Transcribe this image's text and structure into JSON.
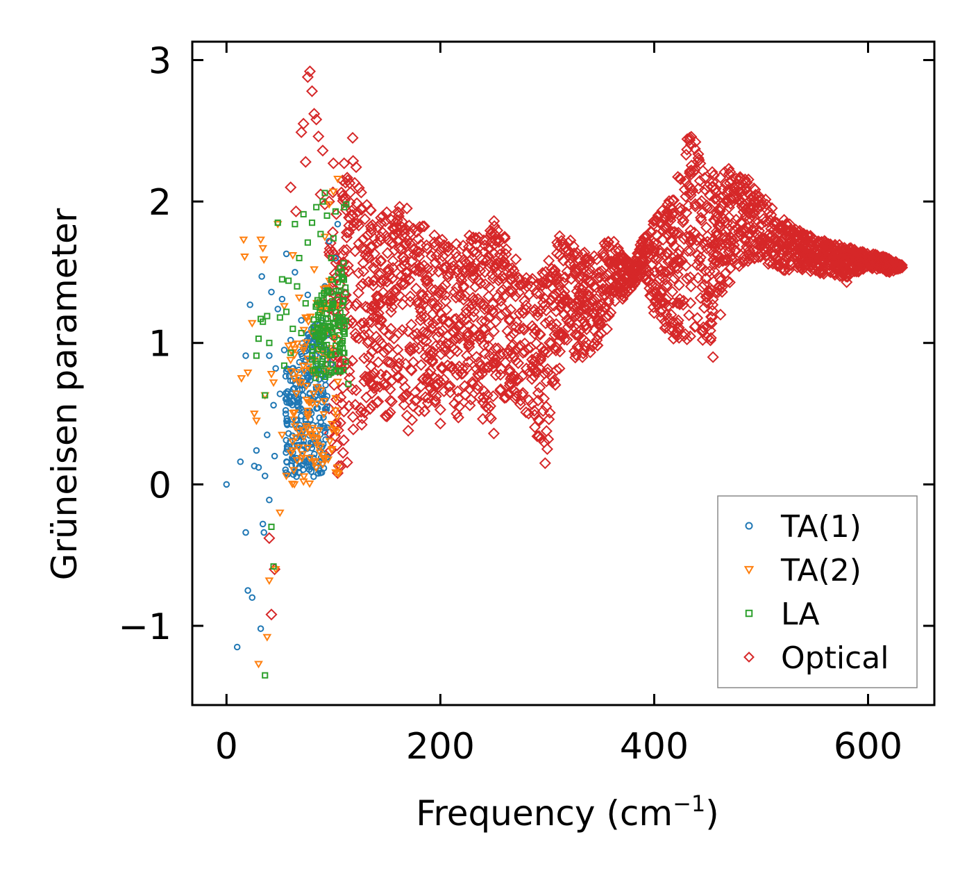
{
  "chart_data": {
    "type": "scatter",
    "title": "",
    "xlabel": "Frequency (cm",
    "xlabel_sup": "−1",
    "xlabel_end": ")",
    "ylabel": "Grüneisen parameter",
    "xlim": [
      -32,
      662
    ],
    "ylim": [
      -1.56,
      3.13
    ],
    "xticks": [
      0,
      200,
      400,
      600
    ],
    "xtick_labels": [
      "0",
      "200",
      "400",
      "600"
    ],
    "yticks": [
      -1,
      0,
      1,
      2,
      3
    ],
    "ytick_labels": [
      "−1",
      "0",
      "1",
      "2",
      "3"
    ],
    "grid": false,
    "legend_position": "lower-right",
    "series": [
      {
        "name": "TA(1)",
        "marker": "circle",
        "color": "#1f77b4",
        "points": [
          [
            0,
            0
          ],
          [
            10,
            -1.15
          ],
          [
            13,
            0.16
          ],
          [
            18,
            -0.34
          ],
          [
            18,
            0.91
          ],
          [
            20,
            -0.75
          ],
          [
            22,
            1.27
          ],
          [
            24,
            -0.8
          ],
          [
            26,
            0.13
          ],
          [
            28,
            0.24
          ],
          [
            30,
            0.12
          ],
          [
            32,
            -1.02
          ],
          [
            33,
            1.47
          ],
          [
            34,
            -0.28
          ],
          [
            35,
            -0.34
          ],
          [
            36,
            0.06
          ],
          [
            38,
            0.35
          ],
          [
            40,
            0.91
          ],
          [
            40,
            -0.11
          ],
          [
            42,
            1.36
          ],
          [
            44,
            0.56
          ],
          [
            45,
            0.2
          ],
          [
            46,
            0.82
          ],
          [
            48,
            1.24
          ],
          [
            50,
            0.64
          ],
          [
            52,
            1.31
          ],
          [
            54,
            0.95
          ],
          [
            56,
            1.63
          ],
          [
            58,
            0.36
          ],
          [
            60,
            1.02
          ],
          [
            62,
            0.78
          ],
          [
            64,
            1.5
          ],
          [
            66,
            0.45
          ],
          [
            68,
            0.58
          ],
          [
            70,
            1.16
          ],
          [
            72,
            0.28
          ],
          [
            74,
            0.88
          ],
          [
            76,
            1.34
          ],
          [
            78,
            0.52
          ],
          [
            80,
            0.95
          ],
          [
            82,
            1.12
          ],
          [
            84,
            0.67
          ],
          [
            86,
            0.3
          ],
          [
            88,
            1.02
          ],
          [
            90,
            0.22
          ],
          [
            92,
            1.4
          ],
          [
            94,
            0.55
          ],
          [
            96,
            1.72
          ],
          [
            98,
            0.85
          ],
          [
            100,
            1.28
          ],
          [
            102,
            1.6
          ],
          [
            104,
            1.84
          ]
        ],
        "dense_bands": [
          [
            55,
            95,
            0.05,
            1.3,
            260
          ]
        ]
      },
      {
        "name": "TA(2)",
        "marker": "triangle-down",
        "color": "#ff7f0e",
        "points": [
          [
            14,
            0.75
          ],
          [
            16,
            1.73
          ],
          [
            17,
            1.61
          ],
          [
            20,
            0.79
          ],
          [
            24,
            1.14
          ],
          [
            26,
            0.5
          ],
          [
            28,
            0.45
          ],
          [
            30,
            -1.27
          ],
          [
            32,
            1.73
          ],
          [
            34,
            1.67
          ],
          [
            35,
            1.59
          ],
          [
            36,
            0.63
          ],
          [
            38,
            -1.08
          ],
          [
            40,
            -0.68
          ],
          [
            42,
            0.78
          ],
          [
            44,
            0.72
          ],
          [
            46,
            -0.6
          ],
          [
            48,
            1.84
          ],
          [
            50,
            -0.2
          ],
          [
            52,
            0.35
          ],
          [
            54,
            1.26
          ],
          [
            56,
            0.06
          ],
          [
            58,
            0.98
          ],
          [
            60,
            0.88
          ],
          [
            62,
            1.62
          ],
          [
            64,
            0.41
          ],
          [
            66,
            0.17
          ],
          [
            68,
            1.32
          ],
          [
            70,
            0.72
          ],
          [
            72,
            0.02
          ],
          [
            74,
            1.18
          ],
          [
            76,
            0.26
          ],
          [
            78,
            0.58
          ],
          [
            80,
            0.81
          ],
          [
            82,
            1.52
          ],
          [
            84,
            0.33
          ],
          [
            86,
            0.95
          ],
          [
            88,
            1.23
          ],
          [
            92,
            1.75
          ],
          [
            96,
            1.98
          ],
          [
            100,
            2.07
          ],
          [
            104,
            2.16
          ]
        ],
        "dense_bands": [
          [
            60,
            105,
            0.0,
            1.6,
            110
          ]
        ]
      },
      {
        "name": "LA",
        "marker": "square",
        "color": "#2ca02c",
        "points": [
          [
            28,
            0.91
          ],
          [
            30,
            1.03
          ],
          [
            32,
            1.17
          ],
          [
            34,
            1.15
          ],
          [
            36,
            0.63
          ],
          [
            38,
            1.19
          ],
          [
            40,
            1.0
          ],
          [
            42,
            -0.3
          ],
          [
            44,
            -0.58
          ],
          [
            48,
            1.85
          ],
          [
            50,
            1.18
          ],
          [
            52,
            1.45
          ],
          [
            54,
            0.84
          ],
          [
            56,
            1.22
          ],
          [
            58,
            1.44
          ],
          [
            60,
            0.93
          ],
          [
            62,
            1.1
          ],
          [
            64,
            1.84
          ],
          [
            66,
            1.4
          ],
          [
            68,
            1.6
          ],
          [
            70,
            1.07
          ],
          [
            72,
            1.91
          ],
          [
            74,
            1.28
          ],
          [
            76,
            1.71
          ],
          [
            80,
            1.85
          ],
          [
            84,
            1.96
          ],
          [
            88,
            1.77
          ],
          [
            90,
            2.0
          ],
          [
            92,
            2.06
          ],
          [
            94,
            1.9
          ],
          [
            98,
            1.6
          ],
          [
            100,
            1.74
          ],
          [
            102,
            1.93
          ],
          [
            104,
            1.43
          ],
          [
            106,
            1.18
          ],
          [
            108,
            1.0
          ],
          [
            110,
            1.96
          ],
          [
            112,
            1.98
          ],
          [
            114,
            0.71
          ],
          [
            36,
            -1.35
          ]
        ],
        "dense_bands": [
          [
            80,
            112,
            0.75,
            1.6,
            140
          ]
        ]
      },
      {
        "name": "Optical",
        "marker": "diamond",
        "color": "#d62728",
        "points": [
          [
            40,
            -0.38
          ],
          [
            42,
            -0.92
          ],
          [
            45,
            -0.6
          ],
          [
            60,
            2.1
          ],
          [
            65,
            1.93
          ],
          [
            70,
            2.49
          ],
          [
            72,
            2.55
          ],
          [
            74,
            2.28
          ],
          [
            76,
            2.88
          ],
          [
            78,
            2.92
          ],
          [
            80,
            2.78
          ],
          [
            82,
            2.62
          ],
          [
            84,
            2.58
          ],
          [
            86,
            2.46
          ],
          [
            88,
            2.05
          ],
          [
            90,
            2.36
          ],
          [
            92,
            1.98
          ],
          [
            96,
            2.0
          ],
          [
            100,
            2.27
          ],
          [
            104,
            0.08
          ],
          [
            105,
            0.13
          ],
          [
            110,
            2.27
          ],
          [
            118,
            2.45
          ],
          [
            150,
            0.48
          ],
          [
            170,
            0.38
          ],
          [
            180,
            0.52
          ],
          [
            200,
            0.43
          ],
          [
            240,
            0.58
          ],
          [
            250,
            0.36
          ],
          [
            298,
            0.15
          ],
          [
            300,
            0.25
          ],
          [
            405,
            1.33
          ],
          [
            410,
            1.15
          ],
          [
            418,
            1.03
          ],
          [
            420,
            1.07
          ],
          [
            424,
            1.31
          ],
          [
            426,
            1.58
          ],
          [
            430,
            1.75
          ],
          [
            432,
            1.97
          ],
          [
            440,
            1.55
          ],
          [
            455,
            0.9
          ],
          [
            462,
            1.2
          ],
          [
            580,
            1.43
          ]
        ],
        "envelope": [
          [
            95,
            0.2,
            2.3
          ],
          [
            110,
            0.1,
            2.32
          ],
          [
            120,
            0.25,
            2.3
          ],
          [
            130,
            0.5,
            2.05
          ],
          [
            140,
            0.45,
            1.9
          ],
          [
            150,
            0.48,
            1.95
          ],
          [
            160,
            0.55,
            2.0
          ],
          [
            170,
            0.4,
            1.95
          ],
          [
            180,
            0.45,
            1.88
          ],
          [
            190,
            0.55,
            1.78
          ],
          [
            200,
            0.5,
            1.75
          ],
          [
            210,
            0.4,
            1.7
          ],
          [
            220,
            0.5,
            1.72
          ],
          [
            230,
            0.5,
            1.8
          ],
          [
            240,
            0.45,
            1.72
          ],
          [
            250,
            0.38,
            1.88
          ],
          [
            260,
            0.6,
            1.8
          ],
          [
            270,
            0.6,
            1.62
          ],
          [
            280,
            0.5,
            1.5
          ],
          [
            290,
            0.3,
            1.45
          ],
          [
            300,
            0.18,
            1.6
          ],
          [
            310,
            0.8,
            1.78
          ],
          [
            320,
            0.9,
            1.75
          ],
          [
            330,
            0.85,
            1.68
          ],
          [
            340,
            0.9,
            1.6
          ],
          [
            350,
            0.95,
            1.72
          ],
          [
            360,
            1.2,
            1.75
          ],
          [
            370,
            1.3,
            1.62
          ],
          [
            380,
            1.4,
            1.55
          ],
          [
            390,
            1.5,
            1.75
          ],
          [
            400,
            1.2,
            1.88
          ],
          [
            410,
            1.1,
            1.98
          ],
          [
            420,
            1.05,
            2.1
          ],
          [
            430,
            1.0,
            2.5
          ],
          [
            440,
            1.1,
            2.42
          ],
          [
            450,
            0.9,
            2.2
          ],
          [
            460,
            1.3,
            2.22
          ],
          [
            470,
            1.4,
            2.25
          ],
          [
            480,
            1.5,
            2.18
          ],
          [
            490,
            1.6,
            2.15
          ],
          [
            500,
            1.55,
            2.05
          ],
          [
            510,
            1.55,
            1.97
          ],
          [
            520,
            1.5,
            1.88
          ],
          [
            530,
            1.5,
            1.82
          ],
          [
            540,
            1.5,
            1.78
          ],
          [
            550,
            1.5,
            1.75
          ],
          [
            560,
            1.47,
            1.72
          ],
          [
            570,
            1.48,
            1.7
          ],
          [
            580,
            1.45,
            1.68
          ],
          [
            590,
            1.5,
            1.66
          ],
          [
            600,
            1.53,
            1.64
          ],
          [
            610,
            1.52,
            1.62
          ],
          [
            620,
            1.5,
            1.6
          ],
          [
            632,
            1.53,
            1.55
          ]
        ],
        "fill_density": 2400
      }
    ]
  }
}
